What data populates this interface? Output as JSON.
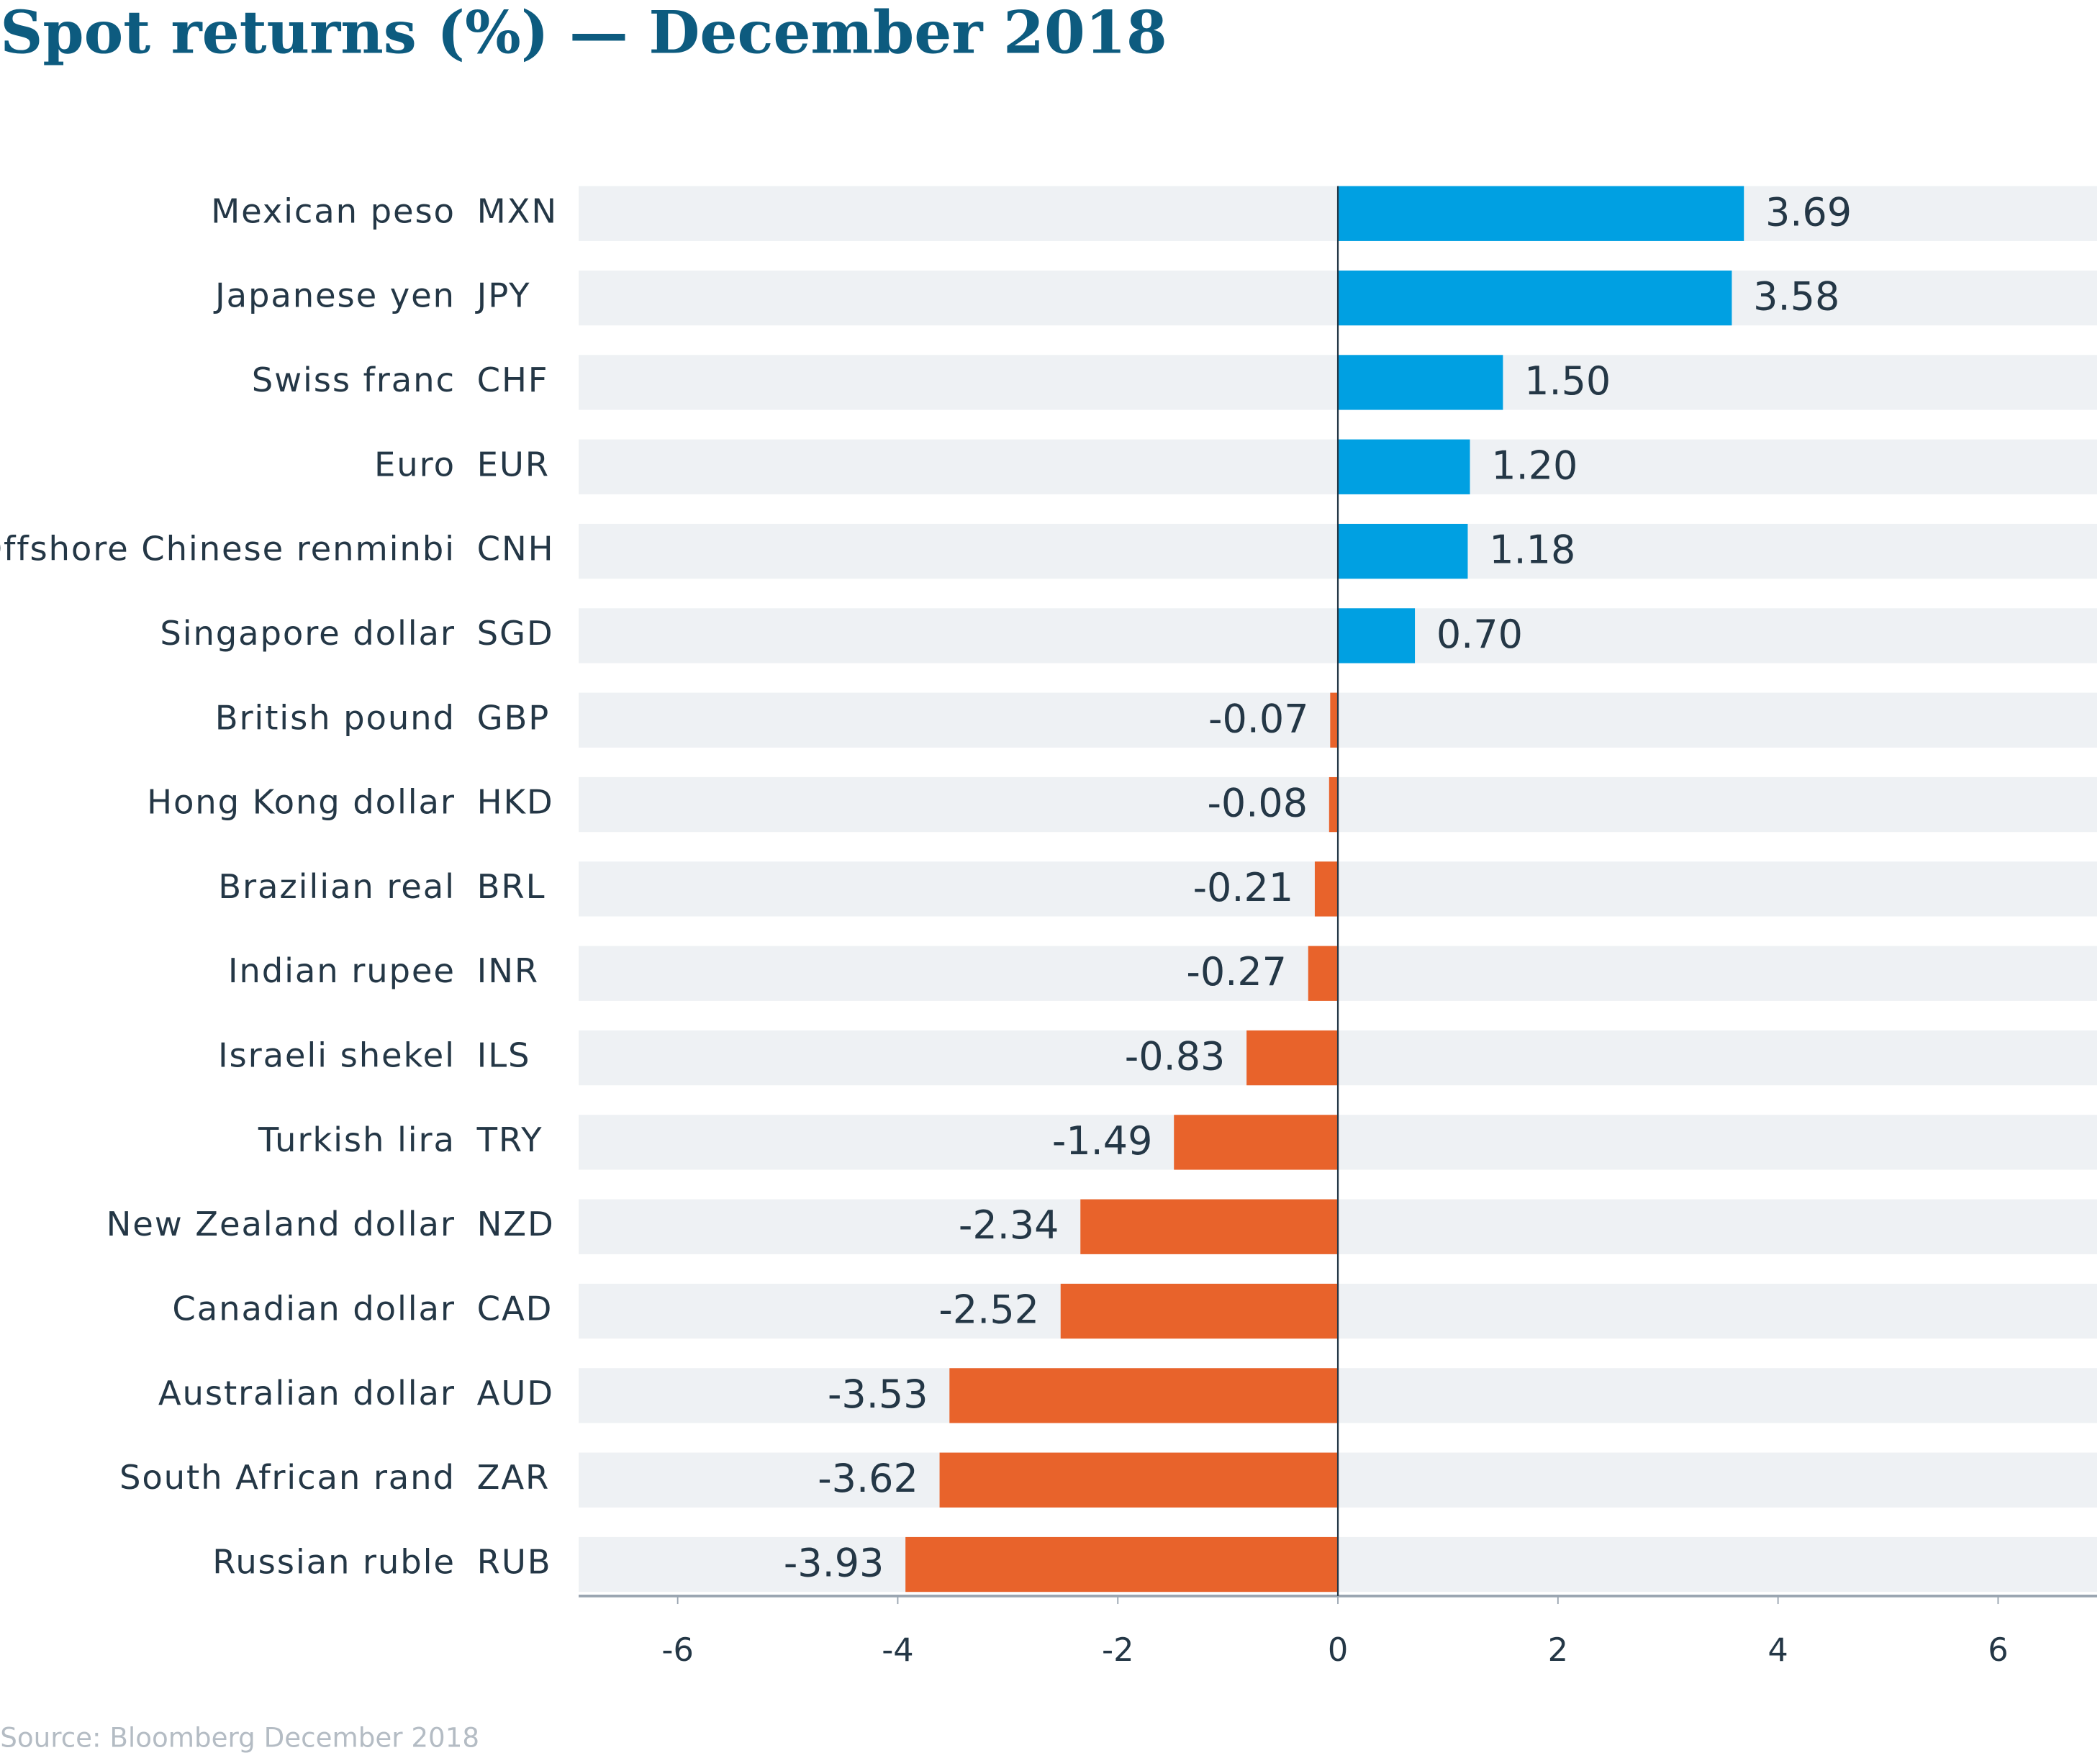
{
  "chart_data": {
    "type": "hbar",
    "title": "Spot returns (%) — December 2018",
    "source": "Source: Bloomberg December 2018",
    "categories": [
      "Mexican peso",
      "Japanese yen",
      "Swiss franc",
      "Euro",
      "Offshore Chinese renminbi",
      "Singapore dollar",
      "British pound",
      "Hong Kong dollar",
      "Brazilian real",
      "Indian rupee",
      "Israeli shekel",
      "Turkish lira",
      "New Zealand dollar",
      "Canadian dollar",
      "Australian dollar",
      "South African rand",
      "Russian ruble"
    ],
    "codes": [
      "MXN",
      "JPY",
      "CHF",
      "EUR",
      "CNH",
      "SGD",
      "GBP",
      "HKD",
      "BRL",
      "INR",
      "ILS",
      "TRY",
      "NZD",
      "CAD",
      "AUD",
      "ZAR",
      "RUB"
    ],
    "values": [
      3.69,
      3.58,
      1.5,
      1.2,
      1.18,
      0.7,
      -0.07,
      -0.08,
      -0.21,
      -0.27,
      -0.83,
      -1.49,
      -2.34,
      -2.52,
      -3.53,
      -3.62,
      -3.93
    ],
    "value_labels": [
      "3.69",
      "3.58",
      "1.50",
      "1.20",
      "1.18",
      "0.70",
      "-0.07",
      "-0.08",
      "-0.21",
      "-0.27",
      "-0.83",
      "-1.49",
      "-2.34",
      "-2.52",
      "-3.53",
      "-3.62",
      "-3.93"
    ],
    "positive_color": "#00a0e2",
    "negative_color": "#e8632b",
    "xlim": [
      -6.9,
      6.9
    ],
    "xticks": [
      -6,
      -4,
      -2,
      0,
      2,
      4,
      6
    ]
  }
}
